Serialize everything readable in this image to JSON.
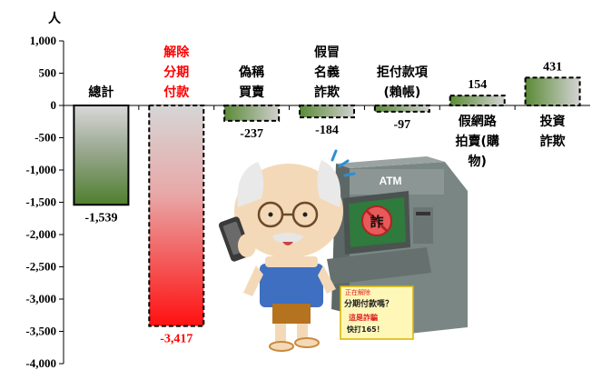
{
  "chart_data": {
    "type": "bar",
    "yunit": "人",
    "ylim": [
      -4000,
      1000
    ],
    "yticks": [
      1000,
      500,
      0,
      -500,
      -1000,
      -1500,
      -2000,
      -2500,
      -3000,
      -3500,
      -4000
    ],
    "ytick_labels": [
      "1,000",
      "500",
      "0",
      "-500",
      "-1,000",
      "-1,500",
      "-2,000",
      "-2,500",
      "-3,000",
      "-3,500",
      "-4,000"
    ],
    "categories": [
      {
        "lines": [
          "總計"
        ],
        "highlight": false
      },
      {
        "lines": [
          "解除",
          "分期",
          "付款"
        ],
        "highlight": true
      },
      {
        "lines": [
          "偽稱",
          "買賣"
        ],
        "highlight": false
      },
      {
        "lines": [
          "假冒",
          "名義",
          "詐欺"
        ],
        "highlight": false
      },
      {
        "lines": [
          "拒付款項",
          "(賴帳)"
        ],
        "highlight": false
      },
      {
        "lines": [
          "假網路",
          "拍賣(購",
          "物)"
        ],
        "highlight": false
      },
      {
        "lines": [
          "投資",
          "詐欺"
        ],
        "highlight": false
      }
    ],
    "values": [
      -1539,
      -3417,
      -237,
      -184,
      -97,
      154,
      431
    ],
    "value_labels": [
      "-1,539",
      "-3,417",
      "-237",
      "-184",
      "-97",
      "154",
      "431"
    ],
    "grid": false,
    "colors": {
      "green": "#5e8c3a",
      "red": "#ff1a1a",
      "gray": "#c8c8c8",
      "highlight_text": "#ff0000"
    }
  },
  "illustration": {
    "atm_label": "ATM",
    "screen_char": "詐",
    "notice_lines": [
      "正在解除",
      "分期付款嗎？",
      "這是詐騙",
      "快打165！"
    ]
  }
}
